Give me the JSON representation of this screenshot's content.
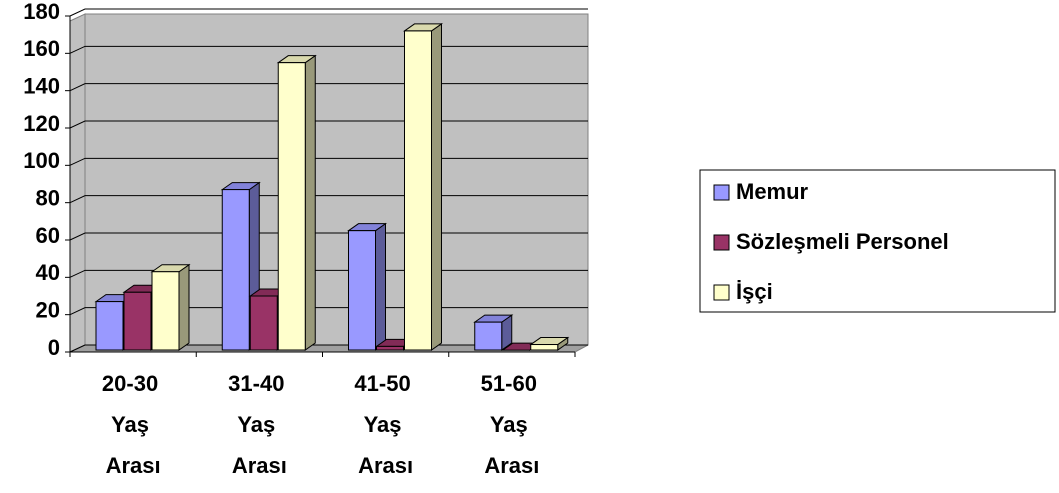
{
  "chart_data": {
    "type": "bar3d",
    "categories": [
      "20-30 Yaş Arası",
      "31-40 Yaş Arası",
      "41-50 Yaş Arası",
      "51-60 Yaş Arası"
    ],
    "series": [
      {
        "name": "Memur",
        "color": "#9999ff",
        "values": [
          27,
          87,
          65,
          16
        ]
      },
      {
        "name": "Sözleşmeli Personel",
        "color": "#993366",
        "values": [
          32,
          30,
          3,
          1
        ]
      },
      {
        "name": "İşçi",
        "color": "#ffffcc",
        "values": [
          43,
          155,
          172,
          4
        ]
      }
    ],
    "ylim": [
      0,
      180
    ],
    "yticks": [
      0,
      20,
      40,
      60,
      80,
      100,
      120,
      140,
      160,
      180
    ],
    "grid": true,
    "legend": "right"
  }
}
